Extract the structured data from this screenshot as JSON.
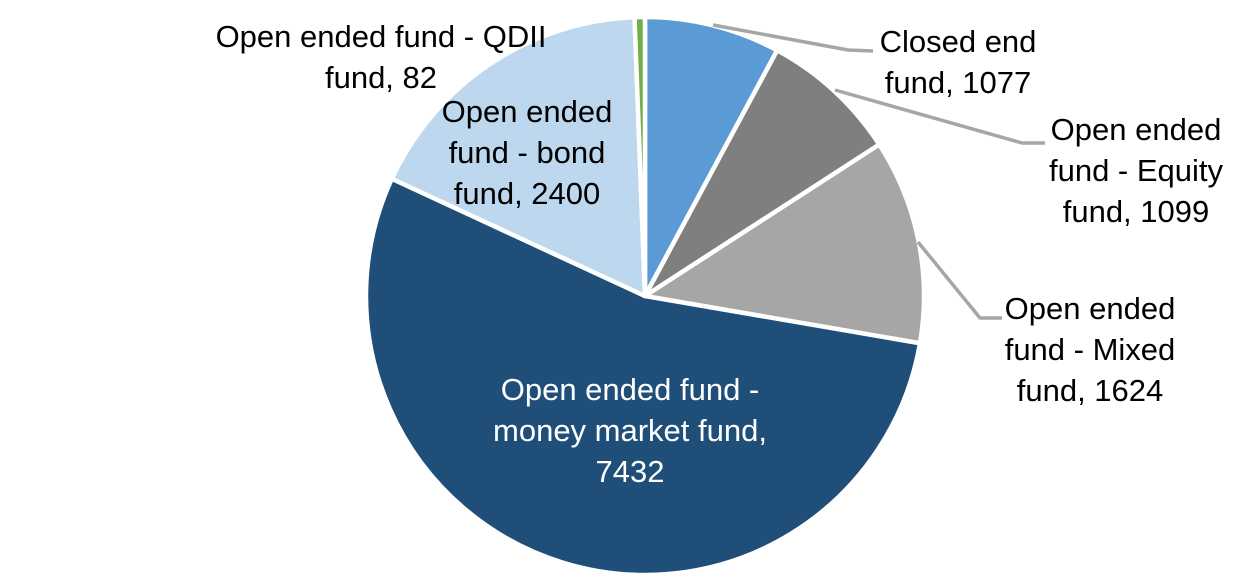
{
  "chart_data": {
    "type": "pie",
    "title": "",
    "legend": "none",
    "start_angle_deg": 0,
    "direction": "clockwise",
    "background_color": "#FFFFFF",
    "leader_line_color": "#A6A6A6",
    "label_text_color": "#000000",
    "inside_label_text_color": "#FFFFFF",
    "slice_border_color": "#FFFFFF",
    "slices": [
      {
        "id": "closed-end-fund",
        "label": "Closed end fund",
        "value": 1077,
        "color": "#5B9BD5",
        "label_position": "outside",
        "label_lines": [
          "Closed end",
          "fund, 1077"
        ]
      },
      {
        "id": "open-ended-equity-fund",
        "label": "Open ended fund - Equity fund",
        "value": 1099,
        "color": "#7F7F7F",
        "label_position": "outside",
        "label_lines": [
          "Open ended",
          "fund - Equity",
          "fund, 1099"
        ]
      },
      {
        "id": "open-ended-mixed-fund",
        "label": "Open ended fund - Mixed fund",
        "value": 1624,
        "color": "#A6A6A6",
        "label_position": "outside",
        "label_lines": [
          "Open ended",
          "fund - Mixed",
          "fund, 1624"
        ]
      },
      {
        "id": "open-ended-money-market-fund",
        "label": "Open ended fund - money market fund",
        "value": 7432,
        "color": "#1F4E79",
        "label_position": "inside",
        "label_lines": [
          "Open ended fund -",
          "money market fund,",
          "7432"
        ]
      },
      {
        "id": "open-ended-bond-fund",
        "label": "Open ended fund - bond fund",
        "value": 2400,
        "color": "#BDD7EE",
        "label_position": "inside",
        "label_lines": [
          "Open ended",
          "fund - bond",
          "fund, 2400"
        ]
      },
      {
        "id": "open-ended-qdii-fund",
        "label": "Open ended fund - QDII fund",
        "value": 82,
        "color": "#70AD47",
        "label_position": "outside",
        "label_lines": [
          "Open ended fund - QDII",
          "fund, 82"
        ]
      }
    ]
  }
}
